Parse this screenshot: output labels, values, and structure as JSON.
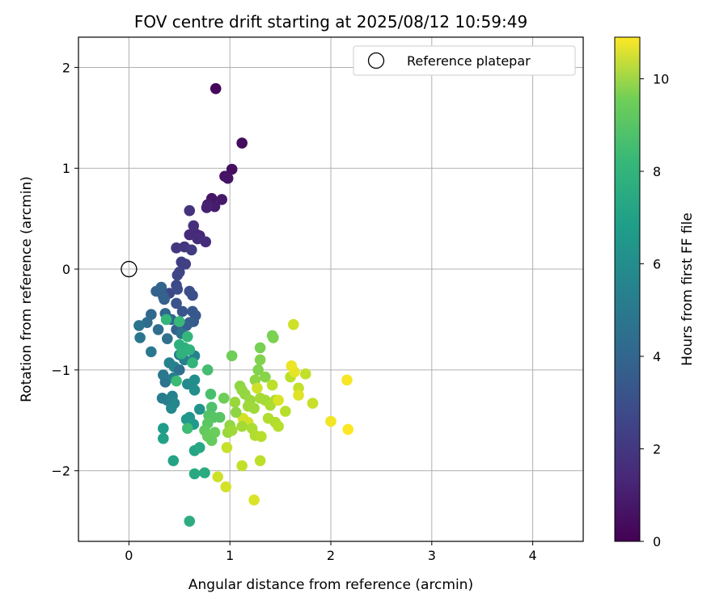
{
  "chart_data": {
    "type": "scatter",
    "title": "FOV centre drift starting at 2025/08/12 10:59:49",
    "xlabel": "Angular distance from reference (arcmin)",
    "ylabel": "Rotation from reference (arcmin)",
    "xlim": [
      -0.5,
      4.5
    ],
    "ylim": [
      -2.7,
      2.3
    ],
    "xticks": [
      0,
      1,
      2,
      3,
      4
    ],
    "yticks": [
      -2,
      -1,
      0,
      1,
      2
    ],
    "grid": true,
    "legend": {
      "placement": "top-right",
      "entries": [
        "Reference platepar"
      ]
    },
    "reference_point": {
      "name": "Reference platepar",
      "x": 0.0,
      "y": 0.0
    },
    "colorbar": {
      "label": "Hours from first FF file",
      "range": [
        0,
        10.9
      ],
      "ticks": [
        0,
        2,
        4,
        6,
        8,
        10
      ],
      "colormap": "viridis"
    },
    "points": [
      [
        0.86,
        1.79,
        0.2
      ],
      [
        1.12,
        1.25,
        0.3
      ],
      [
        1.02,
        0.99,
        0.4
      ],
      [
        0.95,
        0.92,
        0.5
      ],
      [
        0.98,
        0.9,
        0.6
      ],
      [
        0.82,
        0.7,
        0.6
      ],
      [
        0.92,
        0.69,
        0.7
      ],
      [
        0.85,
        0.62,
        0.8
      ],
      [
        0.78,
        0.64,
        0.9
      ],
      [
        0.77,
        0.61,
        1.0
      ],
      [
        0.7,
        0.33,
        1.1
      ],
      [
        0.66,
        0.35,
        1.2
      ],
      [
        0.6,
        0.34,
        1.3
      ],
      [
        0.68,
        0.3,
        1.4
      ],
      [
        0.76,
        0.27,
        1.4
      ],
      [
        0.64,
        0.43,
        1.5
      ],
      [
        0.6,
        0.58,
        1.6
      ],
      [
        0.55,
        0.22,
        1.7
      ],
      [
        0.47,
        0.21,
        1.8
      ],
      [
        0.62,
        0.19,
        1.9
      ],
      [
        0.52,
        0.07,
        2.0
      ],
      [
        0.56,
        0.05,
        2.1
      ],
      [
        0.5,
        -0.03,
        2.2
      ],
      [
        0.48,
        -0.06,
        2.3
      ],
      [
        0.4,
        -0.24,
        2.4
      ],
      [
        0.47,
        -0.16,
        2.4
      ],
      [
        0.48,
        -0.2,
        2.5
      ],
      [
        0.6,
        -0.22,
        2.6
      ],
      [
        0.63,
        -0.26,
        2.7
      ],
      [
        0.47,
        -0.34,
        2.8
      ],
      [
        0.53,
        -0.42,
        2.9
      ],
      [
        0.63,
        -0.42,
        3.0
      ],
      [
        0.66,
        -0.46,
        3.0
      ],
      [
        0.64,
        -0.52,
        3.1
      ],
      [
        0.6,
        -0.53,
        3.2
      ],
      [
        0.57,
        -0.56,
        3.3
      ],
      [
        0.47,
        -0.6,
        3.4
      ],
      [
        0.27,
        -0.22,
        3.4
      ],
      [
        0.32,
        -0.18,
        3.5
      ],
      [
        0.36,
        -0.44,
        3.6
      ],
      [
        0.22,
        -0.45,
        3.7
      ],
      [
        0.18,
        -0.53,
        3.8
      ],
      [
        0.29,
        -0.6,
        3.9
      ],
      [
        0.38,
        -0.69,
        4.0
      ],
      [
        0.52,
        -0.64,
        4.1
      ],
      [
        0.34,
        -0.27,
        3.3
      ],
      [
        0.35,
        -0.3,
        3.4
      ],
      [
        0.42,
        -0.5,
        3.6
      ],
      [
        0.1,
        -0.56,
        4.2
      ],
      [
        0.11,
        -0.68,
        4.3
      ],
      [
        0.22,
        -0.82,
        4.4
      ],
      [
        0.5,
        -0.85,
        4.6
      ],
      [
        0.55,
        -0.9,
        4.7
      ],
      [
        0.65,
        -0.86,
        4.8
      ],
      [
        0.4,
        -0.93,
        4.9
      ],
      [
        0.45,
        -0.97,
        4.9
      ],
      [
        0.5,
        -1.0,
        4.0
      ],
      [
        0.36,
        -1.12,
        4.1
      ],
      [
        0.34,
        -1.05,
        4.4
      ],
      [
        0.44,
        -1.08,
        4.6
      ],
      [
        0.38,
        -1.3,
        4.7
      ],
      [
        0.33,
        -1.28,
        4.5
      ],
      [
        0.43,
        -1.26,
        4.8
      ],
      [
        0.45,
        -1.33,
        5.0
      ],
      [
        0.42,
        -1.38,
        5.1
      ],
      [
        0.58,
        -1.14,
        5.2
      ],
      [
        0.65,
        -1.1,
        5.3
      ],
      [
        0.65,
        -1.2,
        5.4
      ],
      [
        0.7,
        -1.39,
        5.6
      ],
      [
        0.6,
        -1.47,
        5.7
      ],
      [
        0.57,
        -1.49,
        5.8
      ],
      [
        0.64,
        -1.54,
        5.9
      ],
      [
        0.34,
        -1.58,
        6.0
      ],
      [
        0.34,
        -1.68,
        6.2
      ],
      [
        0.44,
        -1.9,
        6.3
      ],
      [
        0.65,
        -1.8,
        6.4
      ],
      [
        0.7,
        -1.77,
        6.5
      ],
      [
        0.65,
        -2.03,
        6.6
      ],
      [
        0.75,
        -2.02,
        6.7
      ],
      [
        0.6,
        -2.5,
        6.8
      ],
      [
        0.5,
        -0.75,
        6.9
      ],
      [
        0.55,
        -0.78,
        6.9
      ],
      [
        0.52,
        -0.84,
        7.0
      ],
      [
        0.6,
        -0.8,
        7.0
      ],
      [
        0.63,
        -0.93,
        7.1
      ],
      [
        0.58,
        -0.67,
        7.2
      ],
      [
        0.37,
        -0.5,
        7.2
      ],
      [
        0.5,
        -0.52,
        7.3
      ],
      [
        0.47,
        -1.11,
        7.4
      ],
      [
        0.58,
        -1.58,
        7.5
      ],
      [
        0.78,
        -1.0,
        7.6
      ],
      [
        0.81,
        -1.24,
        7.7
      ],
      [
        0.82,
        -1.37,
        7.8
      ],
      [
        0.79,
        -1.45,
        7.9
      ],
      [
        0.84,
        -1.47,
        8.0
      ],
      [
        0.9,
        -1.47,
        8.0
      ],
      [
        0.78,
        -1.53,
        8.1
      ],
      [
        0.75,
        -1.6,
        8.2
      ],
      [
        0.78,
        -1.66,
        8.3
      ],
      [
        0.82,
        -1.7,
        8.3
      ],
      [
        0.85,
        -1.62,
        8.4
      ],
      [
        0.94,
        -1.28,
        8.5
      ],
      [
        1.02,
        -0.86,
        8.5
      ],
      [
        1.3,
        -0.78,
        8.6
      ],
      [
        1.42,
        -0.66,
        8.6
      ],
      [
        1.43,
        -0.68,
        8.7
      ],
      [
        1.3,
        -0.9,
        8.8
      ],
      [
        1.28,
        -1.0,
        8.8
      ],
      [
        1.35,
        -1.07,
        8.9
      ],
      [
        1.25,
        -1.1,
        9.0
      ],
      [
        1.1,
        -1.16,
        9.0
      ],
      [
        1.12,
        -1.2,
        9.1
      ],
      [
        1.15,
        -1.24,
        9.1
      ],
      [
        1.2,
        -1.3,
        9.2
      ],
      [
        1.05,
        -1.32,
        9.2
      ],
      [
        1.18,
        -1.36,
        9.3
      ],
      [
        1.24,
        -1.38,
        9.3
      ],
      [
        1.3,
        -1.28,
        9.4
      ],
      [
        1.35,
        -1.3,
        9.4
      ],
      [
        1.4,
        -1.35,
        9.5
      ],
      [
        1.45,
        -1.3,
        9.5
      ],
      [
        1.38,
        -1.48,
        9.6
      ],
      [
        1.45,
        -1.52,
        9.6
      ],
      [
        1.48,
        -1.56,
        9.7
      ],
      [
        1.55,
        -1.41,
        9.7
      ],
      [
        1.42,
        -1.15,
        9.8
      ],
      [
        1.6,
        -1.07,
        9.8
      ],
      [
        1.68,
        -1.18,
        9.9
      ],
      [
        1.75,
        -1.04,
        9.9
      ],
      [
        1.82,
        -1.33,
        10.0
      ],
      [
        1.63,
        -0.55,
        10.1
      ],
      [
        1.27,
        -1.18,
        10.1
      ],
      [
        1.13,
        -1.48,
        10.2
      ],
      [
        1.18,
        -1.52,
        10.2
      ],
      [
        1.06,
        -1.42,
        9.0
      ],
      [
        1.0,
        -1.55,
        9.1
      ],
      [
        0.98,
        -1.62,
        9.2
      ],
      [
        1.02,
        -1.6,
        9.3
      ],
      [
        1.12,
        -1.56,
        9.4
      ],
      [
        1.22,
        -1.58,
        9.5
      ],
      [
        1.25,
        -1.65,
        9.6
      ],
      [
        1.31,
        -1.66,
        9.7
      ],
      [
        1.3,
        -1.9,
        9.8
      ],
      [
        1.12,
        -1.95,
        9.9
      ],
      [
        0.97,
        -1.77,
        10.0
      ],
      [
        0.88,
        -2.06,
        10.1
      ],
      [
        0.96,
        -2.16,
        10.2
      ],
      [
        1.24,
        -2.29,
        10.3
      ],
      [
        1.48,
        -1.3,
        10.3
      ],
      [
        1.68,
        -1.25,
        10.4
      ],
      [
        1.64,
        -1.02,
        10.5
      ],
      [
        1.61,
        -0.96,
        10.6
      ],
      [
        2.0,
        -1.51,
        10.7
      ],
      [
        2.16,
        -1.1,
        10.8
      ],
      [
        2.17,
        -1.59,
        10.9
      ]
    ]
  }
}
